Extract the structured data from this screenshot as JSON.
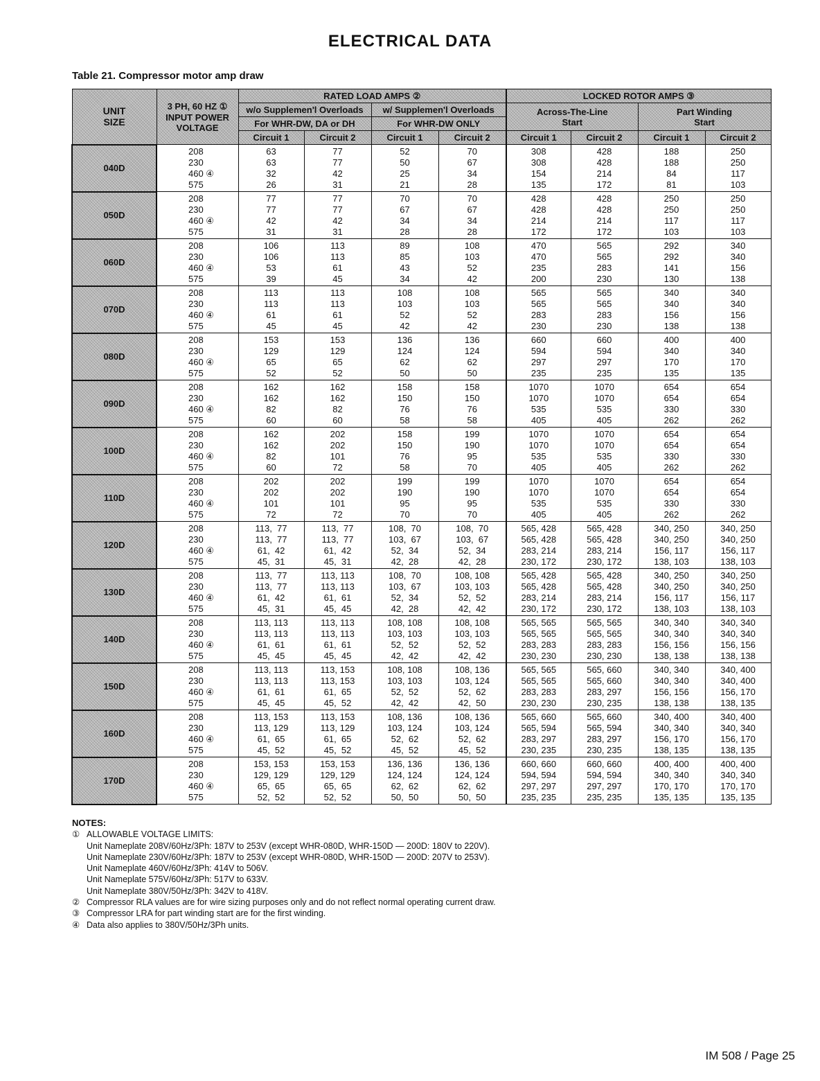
{
  "title": "ELECTRICAL DATA",
  "caption": "Table 21. Compressor motor amp draw",
  "header": {
    "unit_size": [
      "UNIT",
      "SIZE"
    ],
    "voltage": [
      "3 PH, 60 HZ ①",
      "INPUT POWER",
      "VOLTAGE"
    ],
    "rla": "RATED LOAD AMPS ②",
    "lra": "LOCKED ROTOR AMPS ③",
    "wo_overloads": "w/o Supplemen'l Overloads",
    "w_overloads": "w/ Supplemen'l Overloads",
    "wo_models": "For WHR-DW, DA or DH",
    "w_models": "For WHR-DW ONLY",
    "across_line": [
      "Across-The-Line",
      "Start"
    ],
    "part_winding": [
      "Part Winding",
      "Start"
    ],
    "circuit1": "Circuit 1",
    "circuit2": "Circuit 2"
  },
  "units": [
    {
      "size": "040D",
      "rows": [
        [
          "208",
          "63",
          "77",
          "52",
          "70",
          "308",
          "428",
          "188",
          "250"
        ],
        [
          "230",
          "63",
          "77",
          "50",
          "67",
          "308",
          "428",
          "188",
          "250"
        ],
        [
          "460 ④",
          "32",
          "42",
          "25",
          "34",
          "154",
          "214",
          "84",
          "117"
        ],
        [
          "575",
          "26",
          "31",
          "21",
          "28",
          "135",
          "172",
          "81",
          "103"
        ]
      ]
    },
    {
      "size": "050D",
      "rows": [
        [
          "208",
          "77",
          "77",
          "70",
          "70",
          "428",
          "428",
          "250",
          "250"
        ],
        [
          "230",
          "77",
          "77",
          "67",
          "67",
          "428",
          "428",
          "250",
          "250"
        ],
        [
          "460 ④",
          "42",
          "42",
          "34",
          "34",
          "214",
          "214",
          "117",
          "117"
        ],
        [
          "575",
          "31",
          "31",
          "28",
          "28",
          "172",
          "172",
          "103",
          "103"
        ]
      ]
    },
    {
      "size": "060D",
      "rows": [
        [
          "208",
          "106",
          "113",
          "89",
          "108",
          "470",
          "565",
          "292",
          "340"
        ],
        [
          "230",
          "106",
          "113",
          "85",
          "103",
          "470",
          "565",
          "292",
          "340"
        ],
        [
          "460 ④",
          "53",
          "61",
          "43",
          "52",
          "235",
          "283",
          "141",
          "156"
        ],
        [
          "575",
          "39",
          "45",
          "34",
          "42",
          "200",
          "230",
          "130",
          "138"
        ]
      ]
    },
    {
      "size": "070D",
      "rows": [
        [
          "208",
          "113",
          "113",
          "108",
          "108",
          "565",
          "565",
          "340",
          "340"
        ],
        [
          "230",
          "113",
          "113",
          "103",
          "103",
          "565",
          "565",
          "340",
          "340"
        ],
        [
          "460 ④",
          "61",
          "61",
          "52",
          "52",
          "283",
          "283",
          "156",
          "156"
        ],
        [
          "575",
          "45",
          "45",
          "42",
          "42",
          "230",
          "230",
          "138",
          "138"
        ]
      ]
    },
    {
      "size": "080D",
      "rows": [
        [
          "208",
          "153",
          "153",
          "136",
          "136",
          "660",
          "660",
          "400",
          "400"
        ],
        [
          "230",
          "129",
          "129",
          "124",
          "124",
          "594",
          "594",
          "340",
          "340"
        ],
        [
          "460 ④",
          "65",
          "65",
          "62",
          "62",
          "297",
          "297",
          "170",
          "170"
        ],
        [
          "575",
          "52",
          "52",
          "50",
          "50",
          "235",
          "235",
          "135",
          "135"
        ]
      ]
    },
    {
      "size": "090D",
      "rows": [
        [
          "208",
          "162",
          "162",
          "158",
          "158",
          "1070",
          "1070",
          "654",
          "654"
        ],
        [
          "230",
          "162",
          "162",
          "150",
          "150",
          "1070",
          "1070",
          "654",
          "654"
        ],
        [
          "460 ④",
          "82",
          "82",
          "76",
          "76",
          "535",
          "535",
          "330",
          "330"
        ],
        [
          "575",
          "60",
          "60",
          "58",
          "58",
          "405",
          "405",
          "262",
          "262"
        ]
      ]
    },
    {
      "size": "100D",
      "rows": [
        [
          "208",
          "162",
          "202",
          "158",
          "199",
          "1070",
          "1070",
          "654",
          "654"
        ],
        [
          "230",
          "162",
          "202",
          "150",
          "190",
          "1070",
          "1070",
          "654",
          "654"
        ],
        [
          "460 ④",
          "82",
          "101",
          "76",
          "95",
          "535",
          "535",
          "330",
          "330"
        ],
        [
          "575",
          "60",
          "72",
          "58",
          "70",
          "405",
          "405",
          "262",
          "262"
        ]
      ]
    },
    {
      "size": "110D",
      "rows": [
        [
          "208",
          "202",
          "202",
          "199",
          "199",
          "1070",
          "1070",
          "654",
          "654"
        ],
        [
          "230",
          "202",
          "202",
          "190",
          "190",
          "1070",
          "1070",
          "654",
          "654"
        ],
        [
          "460 ④",
          "101",
          "101",
          "95",
          "95",
          "535",
          "535",
          "330",
          "330"
        ],
        [
          "575",
          "72",
          "72",
          "70",
          "70",
          "405",
          "405",
          "262",
          "262"
        ]
      ]
    },
    {
      "size": "120D",
      "rows": [
        [
          "208",
          "113,  77",
          "113,  77",
          "108,  70",
          "108,  70",
          "565, 428",
          "565, 428",
          "340, 250",
          "340, 250"
        ],
        [
          "230",
          "113,  77",
          "113,  77",
          "103,  67",
          "103,  67",
          "565, 428",
          "565, 428",
          "340, 250",
          "340, 250"
        ],
        [
          "460 ④",
          "61,  42",
          "61,  42",
          "52,  34",
          "52,  34",
          "283, 214",
          "283, 214",
          "156, 117",
          "156, 117"
        ],
        [
          "575",
          "45,  31",
          "45,  31",
          "42,  28",
          "42,  28",
          "230, 172",
          "230, 172",
          "138, 103",
          "138, 103"
        ]
      ]
    },
    {
      "size": "130D",
      "rows": [
        [
          "208",
          "113,  77",
          "113, 113",
          "108,  70",
          "108, 108",
          "565, 428",
          "565, 428",
          "340, 250",
          "340, 250"
        ],
        [
          "230",
          "113,  77",
          "113, 113",
          "103,  67",
          "103, 103",
          "565, 428",
          "565, 428",
          "340, 250",
          "340, 250"
        ],
        [
          "460 ④",
          "61,  42",
          "61,  61",
          "52,  34",
          "52,  52",
          "283, 214",
          "283, 214",
          "156, 117",
          "156, 117"
        ],
        [
          "575",
          "45,  31",
          "45,  45",
          "42,  28",
          "42,  42",
          "230, 172",
          "230, 172",
          "138, 103",
          "138, 103"
        ]
      ]
    },
    {
      "size": "140D",
      "rows": [
        [
          "208",
          "113, 113",
          "113, 113",
          "108, 108",
          "108, 108",
          "565, 565",
          "565, 565",
          "340, 340",
          "340, 340"
        ],
        [
          "230",
          "113, 113",
          "113, 113",
          "103, 103",
          "103, 103",
          "565, 565",
          "565, 565",
          "340, 340",
          "340, 340"
        ],
        [
          "460 ④",
          "61,  61",
          "61,  61",
          "52,  52",
          "52,  52",
          "283, 283",
          "283, 283",
          "156, 156",
          "156, 156"
        ],
        [
          "575",
          "45,  45",
          "45,  45",
          "42,  42",
          "42,  42",
          "230, 230",
          "230, 230",
          "138, 138",
          "138, 138"
        ]
      ]
    },
    {
      "size": "150D",
      "rows": [
        [
          "208",
          "113, 113",
          "113, 153",
          "108, 108",
          "108, 136",
          "565, 565",
          "565, 660",
          "340, 340",
          "340, 400"
        ],
        [
          "230",
          "113, 113",
          "113, 153",
          "103, 103",
          "103, 124",
          "565, 565",
          "565, 660",
          "340, 340",
          "340, 400"
        ],
        [
          "460 ④",
          "61,  61",
          "61,  65",
          "52,  52",
          "52,  62",
          "283, 283",
          "283, 297",
          "156, 156",
          "156, 170"
        ],
        [
          "575",
          "45,  45",
          "45,  52",
          "42,  42",
          "42,  50",
          "230, 230",
          "230, 235",
          "138, 138",
          "138, 135"
        ]
      ]
    },
    {
      "size": "160D",
      "rows": [
        [
          "208",
          "113, 153",
          "113, 153",
          "108, 136",
          "108, 136",
          "565, 660",
          "565, 660",
          "340, 400",
          "340, 400"
        ],
        [
          "230",
          "113, 129",
          "113, 129",
          "103, 124",
          "103, 124",
          "565, 594",
          "565, 594",
          "340, 340",
          "340, 340"
        ],
        [
          "460 ④",
          "61,  65",
          "61,  65",
          "52,  62",
          "52,  62",
          "283, 297",
          "283, 297",
          "156, 170",
          "156, 170"
        ],
        [
          "575",
          "45,  52",
          "45,  52",
          "45,  52",
          "45,  52",
          "230, 235",
          "230, 235",
          "138, 135",
          "138, 135"
        ]
      ]
    },
    {
      "size": "170D",
      "rows": [
        [
          "208",
          "153, 153",
          "153, 153",
          "136, 136",
          "136, 136",
          "660, 660",
          "660, 660",
          "400, 400",
          "400, 400"
        ],
        [
          "230",
          "129, 129",
          "129, 129",
          "124, 124",
          "124, 124",
          "594, 594",
          "594, 594",
          "340, 340",
          "340, 340"
        ],
        [
          "460 ④",
          "65,  65",
          "65,  65",
          "62,  62",
          "62,  62",
          "297, 297",
          "297, 297",
          "170, 170",
          "170, 170"
        ],
        [
          "575",
          "52,  52",
          "52,  52",
          "50,  50",
          "50,  50",
          "235, 235",
          "235, 235",
          "135, 135",
          "135, 135"
        ]
      ]
    }
  ],
  "notes": {
    "title": "NOTES:",
    "n1": {
      "mark": "①",
      "text": "ALLOWABLE VOLTAGE LIMITS:",
      "lines": [
        "Unit Nameplate 208V/60Hz/3Ph: 187V to 253V (except WHR-080D, WHR-150D — 200D: 180V to 220V).",
        "Unit Nameplate 230V/60Hz/3Ph: 187V to 253V (except WHR-080D, WHR-150D — 200D: 207V to 253V).",
        "Unit Nameplate 460V/60Hz/3Ph: 414V to 506V.",
        "Unit Nameplate 575V/60Hz/3Ph: 517V to 633V.",
        "Unit Nameplate 380V/50Hz/3Ph: 342V to 418V."
      ]
    },
    "n2": {
      "mark": "②",
      "text": "Compressor RLA values are for wire sizing purposes only and do not reflect normal operating current draw."
    },
    "n3": {
      "mark": "③",
      "text": "Compressor LRA for part winding start are for the first winding."
    },
    "n4": {
      "mark": "④",
      "text": "Data also applies to 380V/50Hz/3Ph units."
    }
  },
  "footer": "IM 508 / Page 25"
}
